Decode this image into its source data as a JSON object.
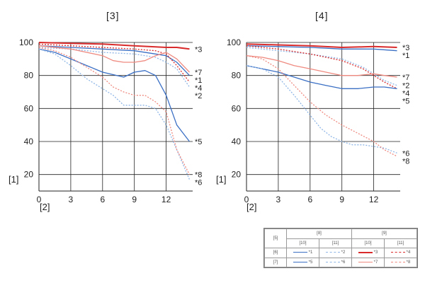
{
  "charts": {
    "left_title": "[3]",
    "right_title": "[4]",
    "ylabel_ref": "[1]",
    "xlabel_ref": "[2]"
  },
  "legend": {
    "header": "[5]",
    "group_a": "[8]",
    "group_b": "[9]",
    "sub_1": "[10]",
    "sub_2": "[11]",
    "sub_3": "[10]",
    "sub_4": "[11]",
    "row_1": "[6]",
    "row_2": "[7]",
    "items": [
      "*1",
      "*2",
      "*3",
      "*4",
      "*5",
      "*6",
      "*7",
      "*8"
    ]
  },
  "colors": {
    "dark_blue": "#3a6fc4",
    "light_blue": "#8fb6e6",
    "dark_red": "#d92b2b",
    "light_red": "#ef8a80",
    "grid": "#222222"
  },
  "chart_data": [
    {
      "type": "line",
      "title": "[3]",
      "xlabel": "[2]",
      "ylabel": "[1]",
      "xlim": [
        0,
        14.5
      ],
      "ylim": [
        10,
        100
      ],
      "xticks": [
        0,
        3,
        6,
        9,
        12
      ],
      "yticks": [
        20,
        40,
        60,
        80,
        100
      ],
      "series": [
        {
          "name": "*1",
          "color": "#3a6fc4",
          "style": "solid",
          "x": [
            0,
            3,
            6,
            9,
            11,
            12,
            13,
            14.2
          ],
          "y": [
            98,
            97,
            96,
            95,
            93,
            92,
            88,
            80
          ]
        },
        {
          "name": "*2",
          "color": "#8fb6e6",
          "style": "dashed",
          "x": [
            0,
            3,
            6,
            9,
            11,
            12,
            13,
            14.2
          ],
          "y": [
            97,
            96,
            94,
            93,
            91,
            88,
            84,
            73
          ]
        },
        {
          "name": "*3",
          "color": "#d92b2b",
          "style": "solid",
          "x": [
            0,
            3,
            6,
            9,
            12,
            13,
            14.2
          ],
          "y": [
            100,
            99.5,
            99,
            98,
            97,
            97,
            96
          ]
        },
        {
          "name": "*4",
          "color": "#d92b2b",
          "style": "dashed",
          "x": [
            0,
            3,
            6,
            9,
            11,
            12,
            13,
            14.2
          ],
          "y": [
            99,
            98,
            97,
            96,
            95,
            93,
            86,
            76
          ]
        },
        {
          "name": "*5",
          "color": "#3a6fc4",
          "style": "solid",
          "x": [
            0,
            1.5,
            3,
            6,
            8,
            9,
            10,
            11,
            12,
            13,
            14.2
          ],
          "y": [
            96,
            94,
            90,
            82,
            79,
            82,
            83,
            80,
            68,
            50,
            40
          ]
        },
        {
          "name": "*6",
          "color": "#8fb6e6",
          "style": "dashed",
          "x": [
            0,
            1.5,
            3,
            4.5,
            6,
            7,
            8,
            9,
            10,
            11,
            12,
            13,
            14.2
          ],
          "y": [
            96,
            93,
            86,
            78,
            72,
            68,
            62,
            62,
            62,
            60,
            50,
            35,
            17
          ]
        },
        {
          "name": "*7",
          "color": "#ef8a80",
          "style": "solid",
          "x": [
            0,
            3,
            6,
            7,
            8,
            9,
            10,
            11,
            12,
            13,
            14.2
          ],
          "y": [
            98,
            96,
            92,
            89,
            88,
            88,
            89,
            92,
            94,
            90,
            82
          ]
        },
        {
          "name": "*8",
          "color": "#ef8a80",
          "style": "dashed",
          "x": [
            0,
            1.5,
            3,
            4.5,
            6,
            7,
            8,
            9,
            10,
            11,
            12,
            13,
            14.2
          ],
          "y": [
            97,
            95,
            91,
            85,
            79,
            73,
            70,
            68,
            68,
            64,
            58,
            35,
            20
          ]
        }
      ]
    },
    {
      "type": "line",
      "title": "[4]",
      "xlabel": "[2]",
      "ylabel": "[1]",
      "xlim": [
        0,
        14.5
      ],
      "ylim": [
        10,
        100
      ],
      "xticks": [
        0,
        3,
        6,
        9,
        12
      ],
      "yticks": [
        20,
        40,
        60,
        80,
        100
      ],
      "series": [
        {
          "name": "*1",
          "color": "#3a6fc4",
          "style": "solid",
          "x": [
            0,
            3,
            6,
            9,
            12,
            14.2
          ],
          "y": [
            98,
            97.5,
            97,
            96,
            96,
            95
          ]
        },
        {
          "name": "*2",
          "color": "#8fb6e6",
          "style": "dashed",
          "x": [
            0,
            3,
            6,
            9,
            11,
            12,
            13,
            14.2
          ],
          "y": [
            97,
            95,
            93,
            90,
            85,
            81,
            77,
            74
          ]
        },
        {
          "name": "*3",
          "color": "#d92b2b",
          "style": "solid",
          "x": [
            0,
            3,
            6,
            9,
            12,
            14.2
          ],
          "y": [
            99,
            98.5,
            98,
            97,
            97.5,
            97
          ]
        },
        {
          "name": "*4",
          "color": "#d92b2b",
          "style": "dashed",
          "x": [
            0,
            3,
            6,
            9,
            11,
            12,
            13,
            14.2
          ],
          "y": [
            98,
            96,
            93,
            89,
            84,
            80,
            76,
            72
          ]
        },
        {
          "name": "*5",
          "color": "#3a6fc4",
          "style": "solid",
          "x": [
            0,
            1.5,
            3,
            4.5,
            6,
            7.5,
            9,
            10.5,
            12,
            13,
            14.2
          ],
          "y": [
            86,
            84,
            82,
            79,
            76,
            74,
            72,
            72,
            73,
            73,
            72
          ]
        },
        {
          "name": "*6",
          "color": "#8fb6e6",
          "style": "dashed",
          "x": [
            0,
            1.5,
            3,
            4.5,
            6,
            7,
            8,
            9,
            10,
            11,
            12,
            13,
            14.2
          ],
          "y": [
            86,
            84,
            79,
            68,
            56,
            48,
            43,
            40,
            38,
            38,
            37,
            36,
            33
          ]
        },
        {
          "name": "*7",
          "color": "#ef8a80",
          "style": "solid",
          "x": [
            0,
            1.5,
            3,
            4.5,
            6,
            7.5,
            9,
            10.5,
            12,
            13,
            14.2
          ],
          "y": [
            92,
            91,
            89,
            86,
            84,
            82,
            80,
            80,
            81,
            80,
            79
          ]
        },
        {
          "name": "*8",
          "color": "#ef8a80",
          "style": "dashed",
          "x": [
            0,
            1.5,
            3,
            4.5,
            6,
            7.5,
            9,
            10.5,
            12,
            13,
            14.2
          ],
          "y": [
            92,
            90,
            84,
            74,
            64,
            56,
            50,
            45,
            40,
            35,
            31
          ]
        }
      ]
    }
  ]
}
